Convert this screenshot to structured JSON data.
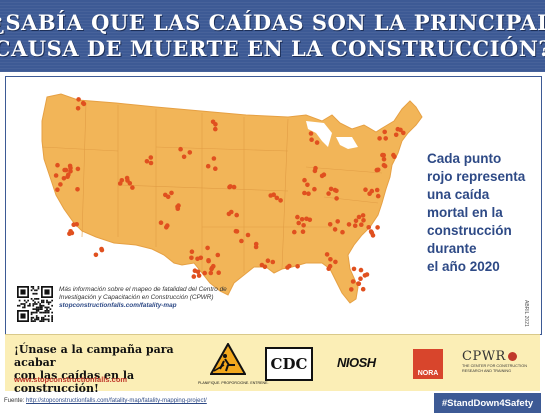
{
  "banner": {
    "line1": "¿SABÍA QUE LAS CAÍDAS SON LA PRINCIPAL",
    "line2": "CAUSA DE MUERTE EN LA CONSTRUCCIÓN?"
  },
  "callout": {
    "lines": [
      "Cada punto",
      "rojo representa",
      "una caída",
      "mortal en la",
      "construcción",
      "durante",
      "el año 2020"
    ]
  },
  "info": {
    "text": "Más información sobre el mapeo de fatalidad del Centro de Investigación y Capacitación en Construcción (CPWR)",
    "url": "stopconstructionfalls.com/fatality-map"
  },
  "date_tag": "ABRIL 2021",
  "campaign": {
    "line1": "¡Únase a la campaña para acabar",
    "line2": "con las caídas en la construcción!",
    "url": "www.stopconstructionfalls.com"
  },
  "logos": {
    "plan_caption": "PLANIFIQUE. PROPORCIONE. ENTRENE.",
    "cdc": "CDC",
    "niosh": "NIOSH",
    "nora": "NORA",
    "cpwr": "CPWR",
    "cpwr_sub1": "THE CENTER FOR CONSTRUCTION",
    "cpwr_sub2": "RESEARCH AND TRAINING"
  },
  "source": {
    "label": "Fuente:",
    "url": "http://stopconstructionfalls.com/fatality-map/fatality-mapping-project/"
  },
  "hashtag": "#StandDown4Safety",
  "colors": {
    "banner": "#3d5a95",
    "land": "#f2b558",
    "dot": "#e0501f",
    "accent_text": "#2e4a86",
    "campaign_bg": "#fbeeb6"
  }
}
